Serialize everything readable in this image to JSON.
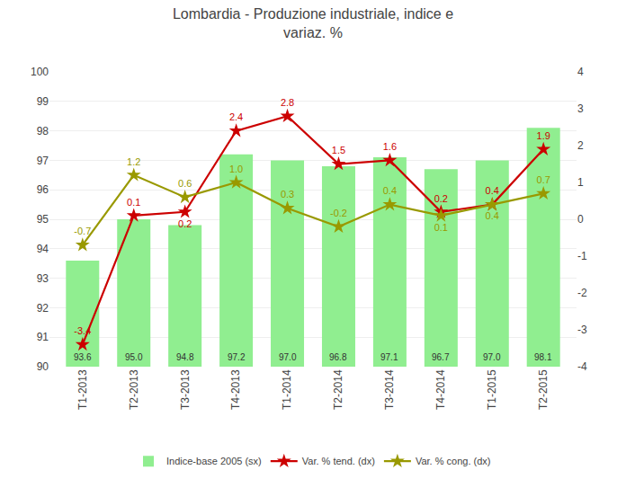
{
  "chart_data": {
    "type": "bar",
    "title": "Lombardia - Produzione industriale, indice e\nvariaz. %",
    "categories": [
      "T1-2013",
      "T2-2013",
      "T3-2013",
      "T4-2013",
      "T1-2014",
      "T2-2014",
      "T3-2014",
      "T4-2014",
      "T1-2015",
      "T2-2015"
    ],
    "series": [
      {
        "name": "Indice-base 2005 (sx)",
        "type": "bar",
        "color": "#90EE90",
        "values": [
          93.6,
          95.0,
          94.8,
          97.2,
          97.0,
          96.8,
          97.1,
          96.7,
          97.0,
          98.1
        ],
        "value_labels": [
          "93.6",
          "95.0",
          "94.8",
          "97.2",
          "97.0",
          "96.8",
          "97.1",
          "96.7",
          "97.0",
          "98.1"
        ]
      },
      {
        "name": "Var. % tend. (dx)",
        "type": "line",
        "axis": "y2",
        "color": "#CC0000",
        "marker": "star",
        "values": [
          -3.4,
          0.1,
          0.2,
          2.4,
          2.8,
          1.5,
          1.6,
          0.2,
          0.4,
          1.9
        ]
      },
      {
        "name": "Var. % cong. (dx)",
        "type": "line",
        "axis": "y2",
        "color": "#999900",
        "marker": "star",
        "values": [
          -0.7,
          1.2,
          0.6,
          1.0,
          0.3,
          -0.2,
          0.4,
          0.1,
          0.4,
          0.7
        ],
        "value_labels": [
          "-0.7",
          "1.2",
          "0.6",
          "1.0",
          "0.3",
          "-0.2",
          "0.4",
          "0.1",
          "0.4",
          "0.7"
        ]
      }
    ],
    "ylim": [
      90,
      100
    ],
    "yticks": [
      90,
      91,
      92,
      93,
      94,
      95,
      96,
      97,
      98,
      99,
      100
    ],
    "y2lim": [
      -4,
      4
    ],
    "y2ticks": [
      -4,
      -3,
      -2,
      -1,
      0,
      1,
      2,
      3,
      4
    ],
    "grid": true,
    "legend": "bottom",
    "data_labels": true
  }
}
